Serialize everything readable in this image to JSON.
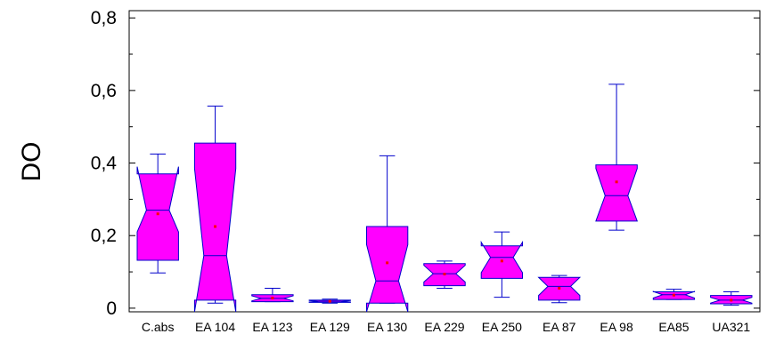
{
  "chart_data": {
    "type": "boxplot",
    "notched": true,
    "show_mean_marker": true,
    "colors": {
      "box_fill": "#ff00ff",
      "box_stroke": "#0000cc",
      "whisker": "#0000cc",
      "mean_marker": "#ff0000",
      "axis": "#000000"
    },
    "title": "",
    "xlabel": "",
    "ylabel": "DO",
    "ylim": [
      -0.01,
      0.82
    ],
    "yticks": [
      {
        "value": 0,
        "label": "0"
      },
      {
        "value": 0.2,
        "label": "0,2"
      },
      {
        "value": 0.4,
        "label": "0,4"
      },
      {
        "value": 0.6,
        "label": "0,6"
      },
      {
        "value": 0.8,
        "label": "0,8"
      }
    ],
    "categories": [
      "C.abs",
      "EA 104",
      "EA 123",
      "EA 129",
      "EA 130",
      "EA 229",
      "EA 250",
      "EA 87",
      "EA 98",
      "EA85",
      "UA321"
    ],
    "boxes": [
      {
        "category": "C.abs",
        "min": 0.097,
        "q1": 0.132,
        "median": 0.27,
        "q3": 0.37,
        "max": 0.425,
        "notch_low": 0.21,
        "notch_high": 0.39,
        "mean": 0.26
      },
      {
        "category": "EA 104",
        "min": 0.014,
        "q1": 0.022,
        "median": 0.145,
        "q3": 0.455,
        "max": 0.557,
        "notch_low": -0.01,
        "notch_high": 0.385,
        "mean": 0.225
      },
      {
        "category": "EA 123",
        "min": 0.018,
        "q1": 0.018,
        "median": 0.027,
        "q3": 0.037,
        "max": 0.055,
        "notch_low": 0.02,
        "notch_high": 0.034,
        "mean": 0.028
      },
      {
        "category": "EA 129",
        "min": 0.014,
        "q1": 0.016,
        "median": 0.019,
        "q3": 0.022,
        "max": 0.025,
        "notch_low": 0.017,
        "notch_high": 0.021,
        "mean": 0.019
      },
      {
        "category": "EA 130",
        "min": 0.014,
        "q1": 0.014,
        "median": 0.075,
        "q3": 0.225,
        "max": 0.42,
        "notch_low": -0.01,
        "notch_high": 0.175,
        "mean": 0.125
      },
      {
        "category": "EA 229",
        "min": 0.055,
        "q1": 0.062,
        "median": 0.095,
        "q3": 0.123,
        "max": 0.13,
        "notch_low": 0.072,
        "notch_high": 0.118,
        "mean": 0.094
      },
      {
        "category": "EA 250",
        "min": 0.03,
        "q1": 0.082,
        "median": 0.14,
        "q3": 0.172,
        "max": 0.21,
        "notch_low": 0.098,
        "notch_high": 0.182,
        "mean": 0.13
      },
      {
        "category": "EA 87",
        "min": 0.015,
        "q1": 0.022,
        "median": 0.06,
        "q3": 0.085,
        "max": 0.09,
        "notch_low": 0.035,
        "notch_high": 0.085,
        "mean": 0.055
      },
      {
        "category": "EA 98",
        "min": 0.215,
        "q1": 0.24,
        "median": 0.31,
        "q3": 0.395,
        "max": 0.617,
        "notch_low": 0.24,
        "notch_high": 0.385,
        "mean": 0.348
      },
      {
        "category": "EA85",
        "min": 0.024,
        "q1": 0.024,
        "median": 0.037,
        "q3": 0.045,
        "max": 0.052,
        "notch_low": 0.028,
        "notch_high": 0.046,
        "mean": 0.036
      },
      {
        "category": "UA321",
        "min": 0.008,
        "q1": 0.012,
        "median": 0.022,
        "q3": 0.035,
        "max": 0.045,
        "notch_low": 0.014,
        "notch_high": 0.03,
        "mean": 0.022
      }
    ]
  }
}
